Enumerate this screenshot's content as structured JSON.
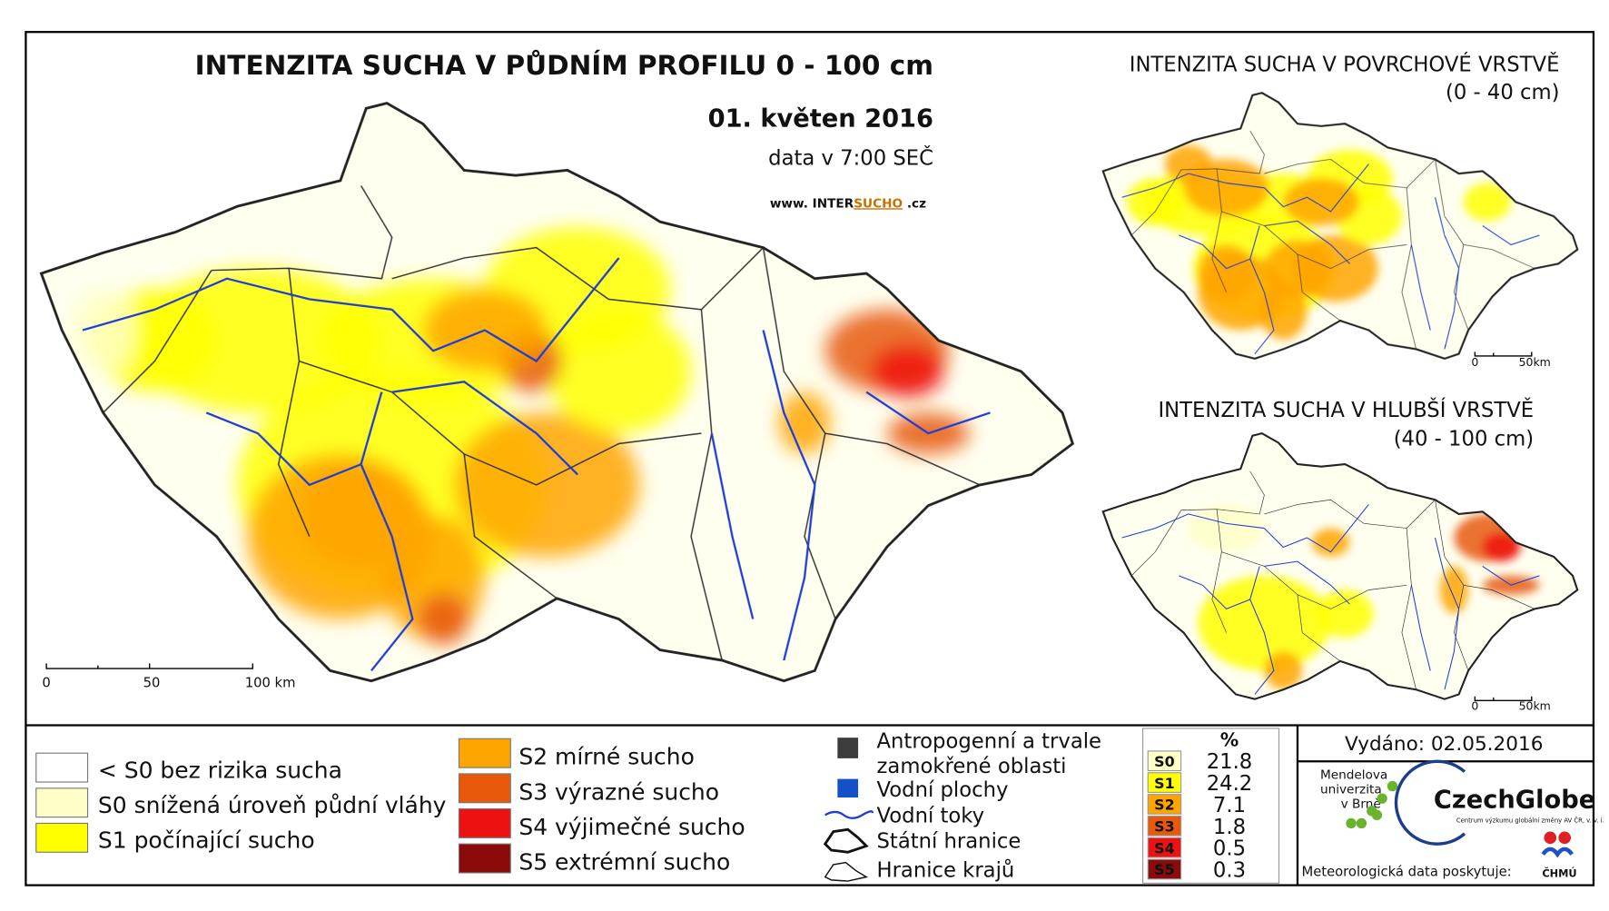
{
  "main_map": {
    "title": "INTENZITA SUCHA V PŮDNÍM PROFILU 0 - 100 cm",
    "date": "01. květen 2016",
    "data_time": "data v 7:00 SEČ",
    "website": [
      "www. INTER",
      "SUCHO",
      " .cz"
    ],
    "scale_labels": [
      "0",
      "50",
      "100 km"
    ]
  },
  "surface_map": {
    "title": "INTENZITA SUCHA V POVRCHOVÉ VRSTVĚ",
    "depth": "(0 - 40 cm)",
    "scale_labels": [
      "0",
      "50km"
    ]
  },
  "deep_map": {
    "title": "INTENZITA SUCHA V HLUBŠÍ VRSTVĚ",
    "depth": "(40 - 100 cm)",
    "scale_labels": [
      "0",
      "50km"
    ]
  },
  "legend": {
    "classes_left": [
      {
        "label": "< S0 bez rizika sucha",
        "color": "#ffffff"
      },
      {
        "label": "S0 snížená úroveň půdní vláhy",
        "color": "#ffffc8"
      },
      {
        "label": "S1 počínající sucho",
        "color": "#ffff00"
      }
    ],
    "classes_right": [
      {
        "label": "S2 mírné sucho",
        "color": "#ffa500"
      },
      {
        "label": "S3 výrazné sucho",
        "color": "#e8590c"
      },
      {
        "label": "S4 výjimečné sucho",
        "color": "#ee1111"
      },
      {
        "label": "S5 extrémní sucho",
        "color": "#8b0a0a"
      }
    ],
    "other": {
      "anthropogenic": [
        "Antropogenní a trvale",
        "zamokřené oblasti"
      ],
      "water_bodies": "Vodní plochy",
      "rivers": "Vodní toky",
      "state_border": "Státní hranice",
      "region_border": "Hranice krajů"
    }
  },
  "stats": {
    "header": "%",
    "rows": [
      [
        "S0",
        "21.8"
      ],
      [
        "S1",
        "24.2"
      ],
      [
        "S2",
        "7.1"
      ],
      [
        "S3",
        "1.8"
      ],
      [
        "S4",
        "0.5"
      ],
      [
        "S5",
        "0.3"
      ]
    ]
  },
  "footer": {
    "issued": "Vydáno: 02.05.2016",
    "mendel": [
      "Mendelova",
      "univerzita",
      "v Brně"
    ],
    "czechglobe": "CzechGlobe",
    "czechglobe_sub": "Centrum výzkumu globální změny AV ČR, v. v. i.",
    "meteo": "Meteorologická data poskytuje:",
    "chmu": "ČHMÚ"
  }
}
